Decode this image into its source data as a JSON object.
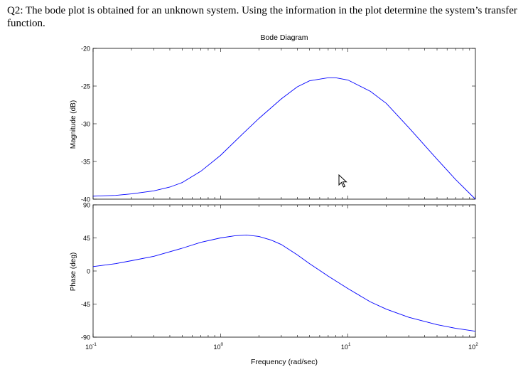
{
  "question": {
    "text": "Q2: The bode plot is obtained for an unknown system. Using the information in the plot determine the system’s transfer function."
  },
  "chart_data": {
    "type": "line",
    "title": "Bode Diagram",
    "xlabel": "Frequency (rad/sec)",
    "x_scale": "log",
    "xlim": [
      0.1,
      100
    ],
    "x_ticks": [
      {
        "base": "10",
        "exp": "-1",
        "value": 0.1
      },
      {
        "base": "10",
        "exp": "0",
        "value": 1
      },
      {
        "base": "10",
        "exp": "1",
        "value": 10
      },
      {
        "base": "10",
        "exp": "2",
        "value": 100
      }
    ],
    "magnitude": {
      "ylabel": "Magnitude (dB)",
      "ylim": [
        -40,
        -20
      ],
      "y_ticks": [
        -20,
        -25,
        -30,
        -35,
        -40
      ],
      "y_tick_labels": [
        "-20",
        "-25",
        "-30",
        "-35",
        "-40"
      ],
      "color": "#0000ff",
      "x": [
        0.1,
        0.15,
        0.2,
        0.3,
        0.4,
        0.5,
        0.7,
        1.0,
        1.5,
        2.0,
        3.0,
        4.0,
        5.0,
        7.0,
        8.0,
        10.0,
        15.0,
        20.0,
        30.0,
        50.0,
        70.0,
        100.0
      ],
      "y": [
        -39.6,
        -39.5,
        -39.3,
        -38.9,
        -38.4,
        -37.8,
        -36.3,
        -34.2,
        -31.3,
        -29.3,
        -26.7,
        -25.1,
        -24.3,
        -23.9,
        -23.9,
        -24.2,
        -25.7,
        -27.3,
        -30.5,
        -34.7,
        -37.4,
        -40.0
      ]
    },
    "phase": {
      "ylabel": "Phase (deg)",
      "ylim": [
        -90,
        90
      ],
      "y_ticks": [
        90,
        45,
        0,
        -45,
        -90
      ],
      "y_tick_labels": [
        "90",
        "45",
        "0",
        "-45",
        "-90"
      ],
      "color": "#0000ff",
      "x": [
        0.1,
        0.15,
        0.2,
        0.3,
        0.5,
        0.7,
        1.0,
        1.3,
        1.6,
        2.0,
        2.5,
        3.0,
        4.0,
        5.0,
        7.0,
        10.0,
        15.0,
        20.0,
        30.0,
        50.0,
        70.0,
        100.0
      ],
      "y": [
        6,
        10,
        14,
        20,
        31,
        39,
        45,
        48,
        49,
        47,
        42,
        36,
        22,
        10,
        -7,
        -24,
        -42,
        -52,
        -63,
        -73,
        -78,
        -82
      ]
    }
  }
}
